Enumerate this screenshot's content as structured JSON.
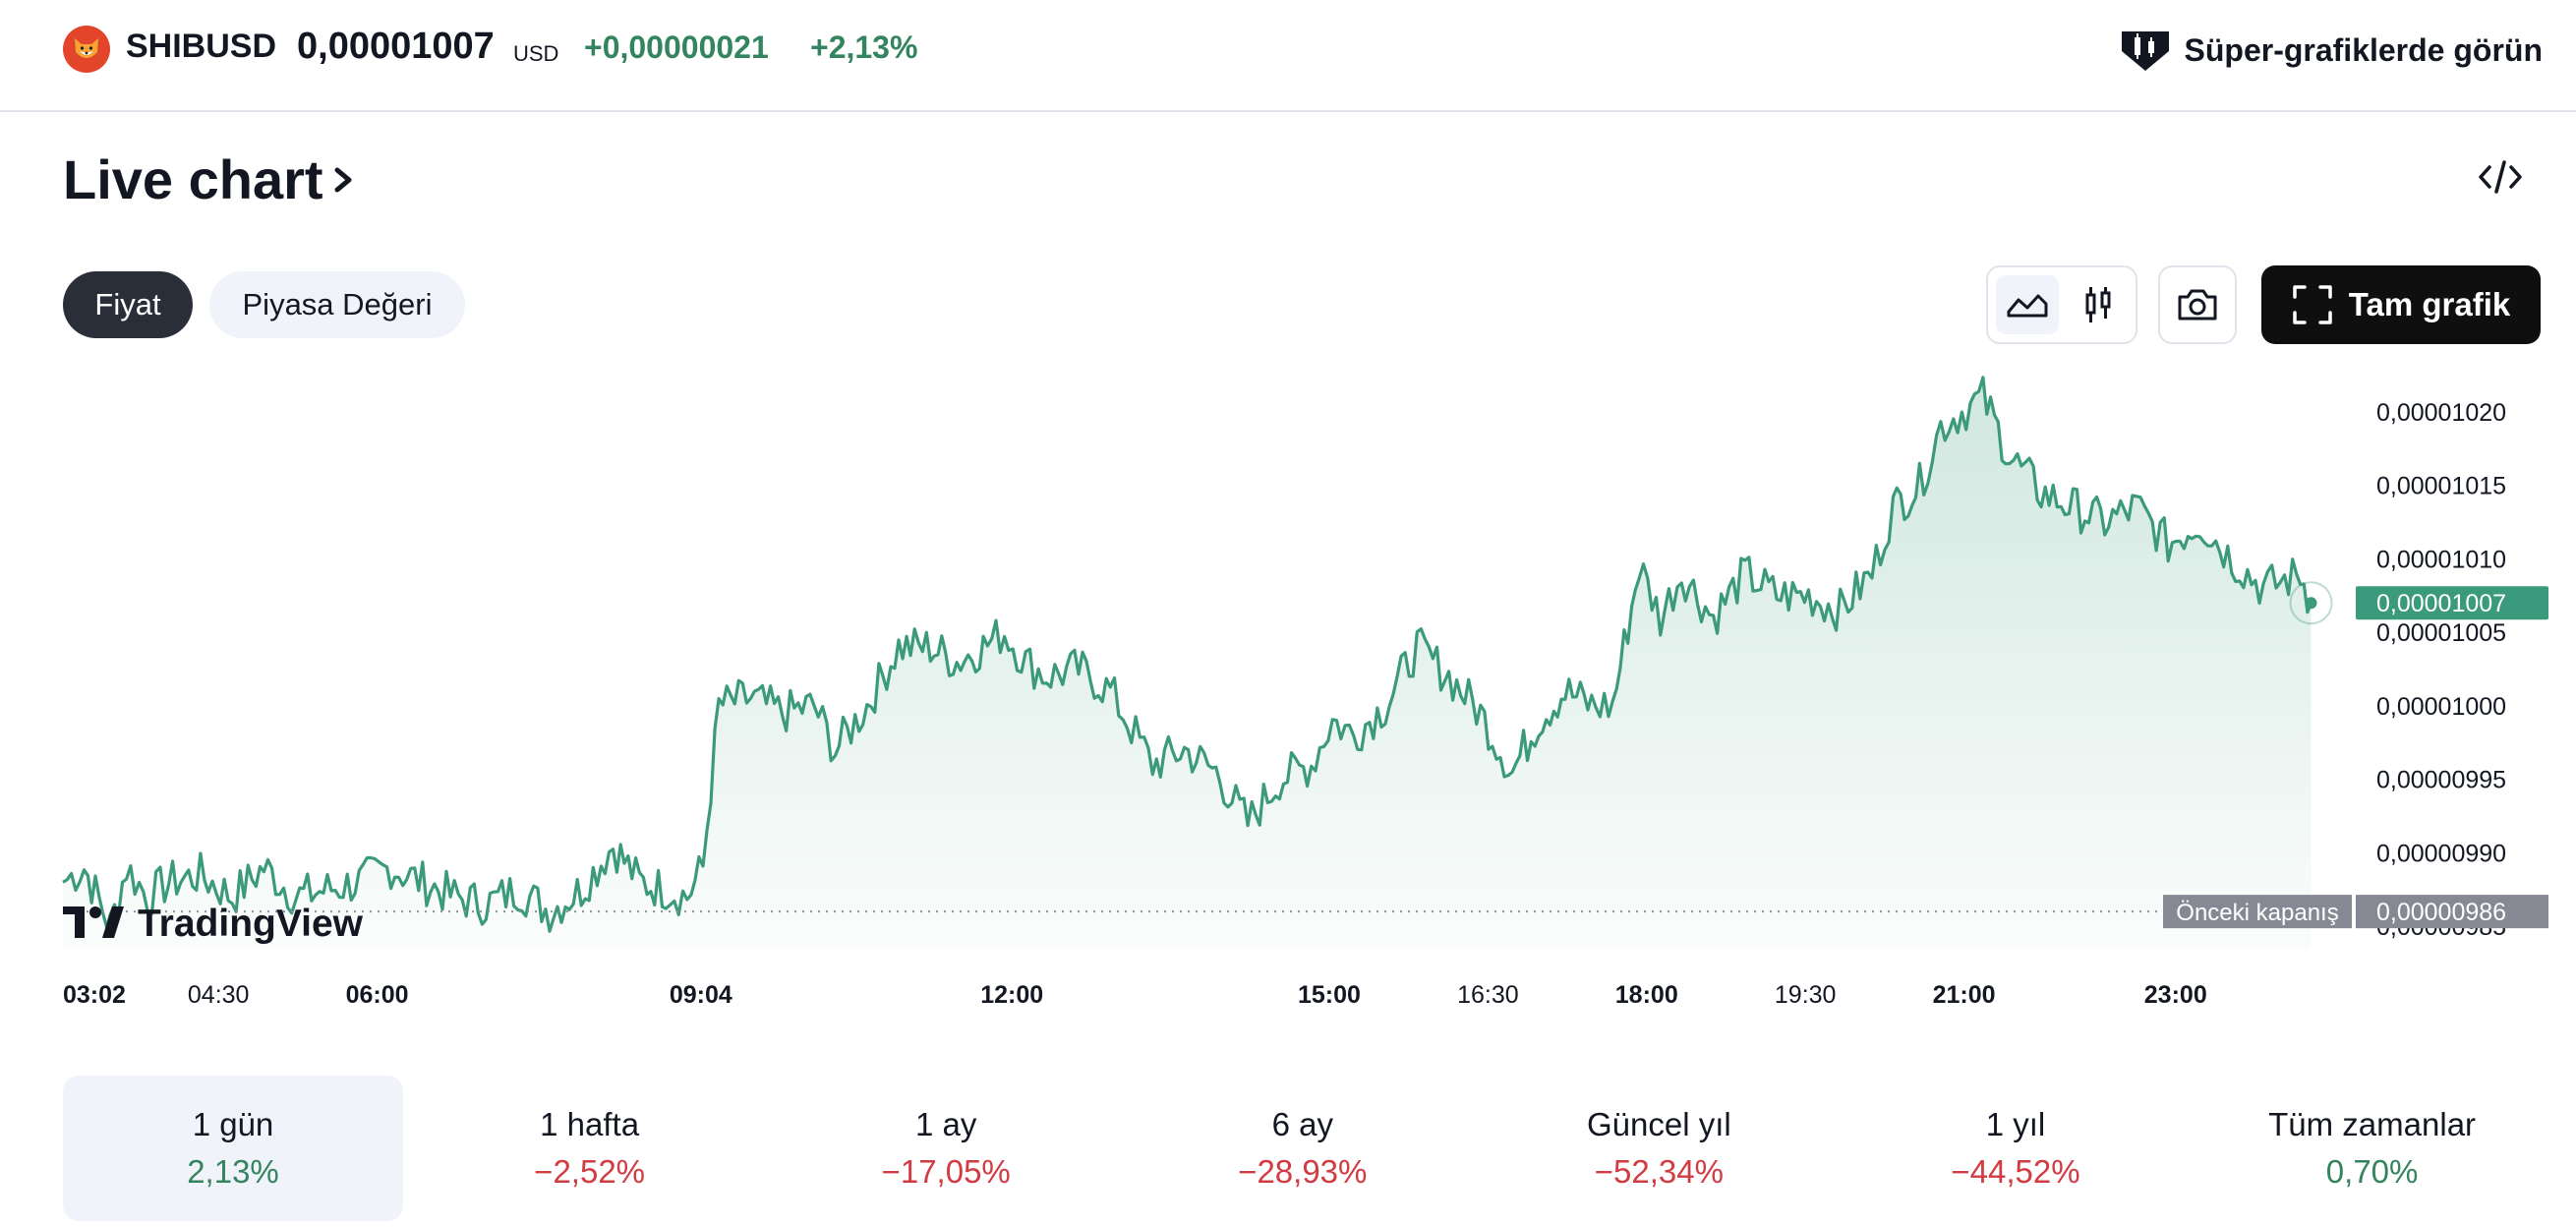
{
  "header": {
    "ticker": "SHIBUSD",
    "price": "0,00001007",
    "currency": "USD",
    "change_abs": "+0,00000021",
    "change_pct": "+2,13%",
    "super_charts_label": "Süper-grafiklerde görün",
    "coin_icon": "shiba-inu-icon"
  },
  "section": {
    "title": "Live chart",
    "embed_icon": "code-embed-icon"
  },
  "controls": {
    "tabs": [
      "Fiyat",
      "Piyasa Değeri"
    ],
    "active_tab": "Fiyat",
    "chart_styles": [
      "area-chart-icon",
      "candlestick-icon"
    ],
    "active_style": "area-chart-icon",
    "snapshot_icon": "camera-icon",
    "full_chart_label": "Tam grafik"
  },
  "colors": {
    "positive": "#34845f",
    "negative": "#d13b42",
    "line": "#3b9a7c",
    "accent_dark": "#0f0f0f"
  },
  "chart_data": {
    "type": "area",
    "watermark": "TradingView",
    "x_ticks": [
      {
        "label": "03:02",
        "bold": true,
        "t": 0
      },
      {
        "label": "04:30",
        "bold": false,
        "t": 1.47
      },
      {
        "label": "06:00",
        "bold": true,
        "t": 2.97
      },
      {
        "label": "09:04",
        "bold": true,
        "t": 6.03
      },
      {
        "label": "12:00",
        "bold": true,
        "t": 8.97
      },
      {
        "label": "15:00",
        "bold": true,
        "t": 11.97
      },
      {
        "label": "16:30",
        "bold": false,
        "t": 13.47
      },
      {
        "label": "18:00",
        "bold": true,
        "t": 14.97
      },
      {
        "label": "19:30",
        "bold": false,
        "t": 16.47
      },
      {
        "label": "21:00",
        "bold": true,
        "t": 17.97
      },
      {
        "label": "23:00",
        "bold": true,
        "t": 19.97
      }
    ],
    "y_ticks": [
      "0,00001020",
      "0,00001015",
      "0,00001010",
      "0,00001005",
      "0,00001000",
      "0,00000995",
      "0,00000990",
      "0,00000985"
    ],
    "y_tick_values": [
      10.2,
      10.15,
      10.1,
      10.05,
      10.0,
      9.95,
      9.9,
      9.85
    ],
    "y_unit": "1e-6 USD",
    "ylim": [
      9.834,
      10.226
    ],
    "current_price_label": "0,00001007",
    "current_value": 10.07,
    "previous_close_title": "Önceki kapanış",
    "previous_close_label": "0,00000986",
    "previous_close_value": 9.86,
    "series": [
      {
        "t": [
          0,
          0.2,
          0.45,
          0.6,
          0.8,
          1.0,
          1.3,
          1.6,
          1.9,
          2.2,
          2.5,
          2.8,
          3.1,
          3.4,
          3.7,
          4.0,
          4.3,
          4.6,
          4.9,
          5.2,
          5.45,
          5.7,
          5.9,
          6.05,
          6.2,
          6.5,
          6.8,
          7.1,
          7.3,
          7.6,
          7.9,
          8.2,
          8.45,
          8.7,
          8.9,
          9.1,
          9.3,
          9.6,
          9.9,
          10.3,
          10.6,
          10.9,
          11.2,
          11.5,
          11.8,
          12.0,
          12.2,
          12.5,
          12.8,
          13.1,
          13.4,
          13.7,
          13.95,
          14.2,
          14.45,
          14.65,
          14.9,
          15.1,
          15.3,
          15.6,
          15.9,
          16.2,
          16.5,
          16.8,
          17.1,
          17.3,
          17.55,
          17.75,
          17.95,
          18.15,
          18.4,
          18.7,
          19.0,
          19.3,
          19.6,
          19.9,
          20.2,
          20.5,
          20.8,
          21.0,
          21.15,
          21.25
        ],
        "v": [
          9.88,
          9.89,
          9.85,
          9.89,
          9.87,
          9.88,
          9.885,
          9.87,
          9.89,
          9.87,
          9.875,
          9.88,
          9.89,
          9.88,
          9.87,
          9.865,
          9.875,
          9.86,
          9.875,
          9.905,
          9.88,
          9.875,
          9.87,
          9.89,
          10.0,
          10.005,
          9.995,
          10.0,
          9.97,
          10.0,
          10.04,
          10.04,
          10.03,
          10.04,
          10.05,
          10.03,
          10.02,
          10.025,
          10.01,
          9.96,
          9.97,
          9.955,
          9.92,
          9.95,
          9.96,
          9.99,
          9.98,
          10.0,
          10.04,
          10.02,
          9.995,
          9.955,
          9.99,
          10.01,
          10.0,
          10.0,
          10.095,
          10.06,
          10.09,
          10.06,
          10.09,
          10.075,
          10.075,
          10.065,
          10.09,
          10.135,
          10.15,
          10.19,
          10.2,
          10.21,
          10.17,
          10.145,
          10.135,
          10.125,
          10.135,
          10.11,
          10.125,
          10.1,
          10.08,
          10.085,
          10.09,
          10.07
        ]
      }
    ]
  },
  "ranges": [
    {
      "label": "1 gün",
      "value": "2,13%",
      "tone": "pos",
      "selected": true
    },
    {
      "label": "1 hafta",
      "value": "−2,52%",
      "tone": "neg",
      "selected": false
    },
    {
      "label": "1 ay",
      "value": "−17,05%",
      "tone": "neg",
      "selected": false
    },
    {
      "label": "6 ay",
      "value": "−28,93%",
      "tone": "neg",
      "selected": false
    },
    {
      "label": "Güncel yıl",
      "value": "−52,34%",
      "tone": "neg",
      "selected": false
    },
    {
      "label": "1 yıl",
      "value": "−44,52%",
      "tone": "neg",
      "selected": false
    },
    {
      "label": "Tüm zamanlar",
      "value": "0,70%",
      "tone": "pos",
      "selected": false
    }
  ]
}
